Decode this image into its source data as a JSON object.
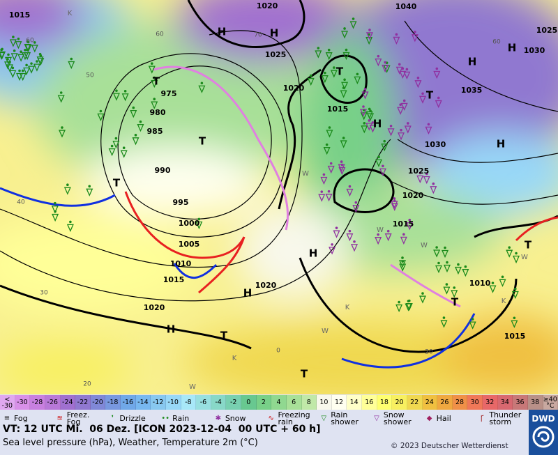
{
  "map": {
    "isobar_labels": [
      "1020",
      "1040",
      "1025",
      "1030",
      "1025",
      "1020",
      "975",
      "980",
      "985",
      "990",
      "995",
      "1000",
      "1005",
      "1010",
      "1015",
      "1015",
      "1035",
      "1030",
      "1025",
      "1020",
      "1015",
      "1020",
      "1020",
      "1010",
      "1015",
      "1015"
    ],
    "grid_labels": [
      "60",
      "50",
      "40",
      "30",
      "20",
      "0",
      "20",
      "60",
      "70",
      "60"
    ],
    "pressure_centers": [
      "H",
      "H",
      "T",
      "H",
      "H",
      "T",
      "T",
      "T",
      "H",
      "T",
      "H",
      "H",
      "H",
      "T",
      "T",
      "H",
      "T",
      "T"
    ],
    "weather_letters": [
      "K",
      "W",
      "W",
      "K",
      "W",
      "K",
      "W",
      "W",
      "W",
      "K"
    ]
  },
  "color_scale": {
    "low_top": "<",
    "low_bottom": "-30",
    "labels": [
      -30,
      -28,
      -26,
      -24,
      -22,
      -20,
      -18,
      -16,
      -14,
      -12,
      -10,
      -8,
      -6,
      -4,
      -2,
      0,
      2,
      4,
      6,
      8,
      10,
      12,
      14,
      16,
      18,
      20,
      22,
      24,
      26,
      28,
      30,
      32,
      34,
      36,
      38
    ],
    "high_top": "≥40",
    "unit": "°C",
    "colors": [
      "#d890e8",
      "#c880e0",
      "#b878d8",
      "#a070d0",
      "#9078d0",
      "#8088d8",
      "#7898e0",
      "#70a8e8",
      "#78b8f0",
      "#88c8f0",
      "#98d8f8",
      "#a8e8f8",
      "#98e0e0",
      "#88d8c8",
      "#78d0b0",
      "#68c890",
      "#78d088",
      "#90d890",
      "#a8e098",
      "#c0e8a8",
      "#f8f8ec",
      "#fffff0",
      "#ffffc8",
      "#ffff98",
      "#ffff70",
      "#f8f060",
      "#f0d850",
      "#f0c040",
      "#f0a840",
      "#f09048",
      "#f07858",
      "#e86868",
      "#d86870",
      "#c87878",
      "#b89088"
    ],
    "low_color": "#e0a8f0",
    "high_color": "#c8a8a0"
  },
  "legend": [
    "Fog",
    "Freez. Fog",
    "Drizzle",
    "Rain",
    "Snow",
    "Freezing rain",
    "Rain shower",
    "Snow shower",
    "Hail",
    "Thunder storm"
  ],
  "footer": {
    "valid_time": "VT: 12 UTC Mi.  06 Dez. [ICON 2023-12-04  00 UTC + 60 h]",
    "description": "Sea level pressure (hPa), Weather, Temperature 2m (°C)",
    "copyright": "© 2023 Deutscher Wetterdienst",
    "logo": "DWD"
  }
}
